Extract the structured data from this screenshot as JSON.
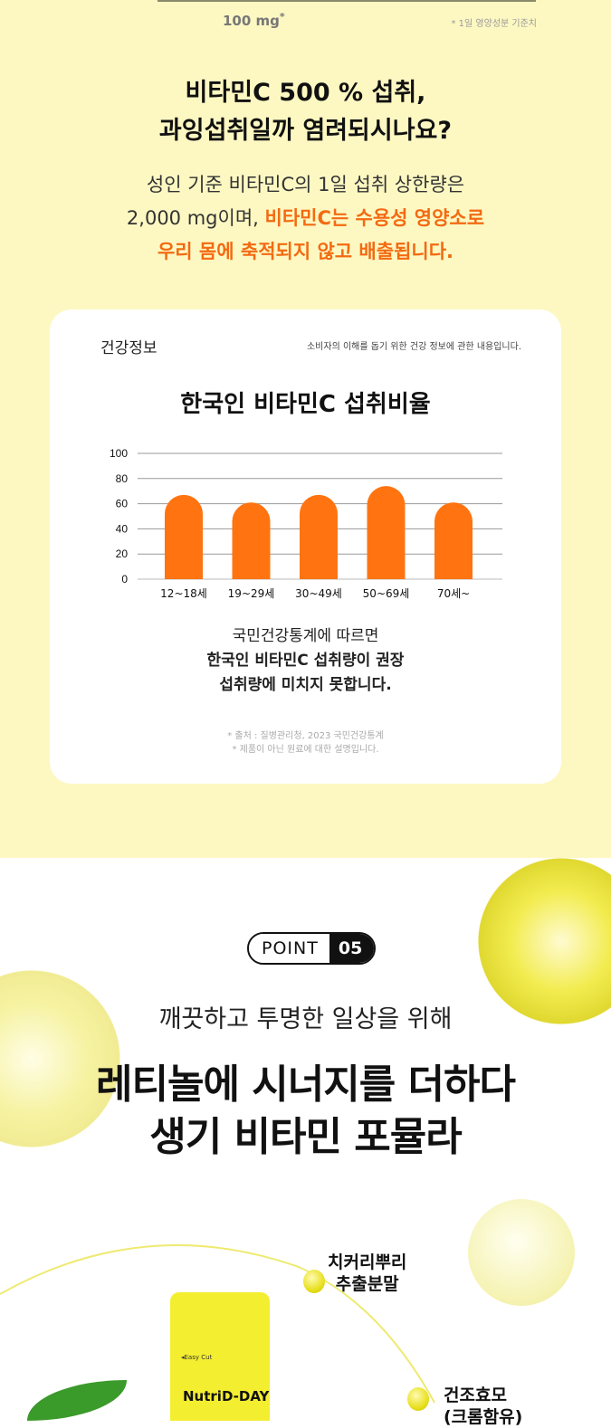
{
  "top": {
    "amount": "100 mg",
    "amount_mark": "*",
    "reference": "* 1일 영양성분 기준치"
  },
  "headline": [
    "비타민C 500 % 섭취,",
    "과잉섭취일까 염려되시나요?"
  ],
  "body": {
    "line1": "성인 기준 비타민C의 1일 섭취 상한량은",
    "line2_plain": "2,000 mg이며, ",
    "line2_highlight": "비타민C는 수용성 영양소로",
    "line3_highlight": "우리 몸에 축적되지 않고 배출됩니다."
  },
  "colors": {
    "accent": "#f36a12",
    "background": "#fdf8c2",
    "bar": "#ff7410"
  },
  "card": {
    "label": "건강정보",
    "note": "소비자의 이해를 돕기 위한 건강 정보에 관한 내용입니다.",
    "desc_line1": "국민건강통계에 따르면",
    "desc_line2": "한국인 비타민C 섭취량이 권장",
    "desc_line3": "섭취량에 미치지 못합니다.",
    "source": "* 출처 : 질병관리청, 2023 국민건강통계",
    "disclaimer": "* 제품이 아닌 원료에 대한 설명입니다."
  },
  "chart_data": {
    "type": "bar",
    "title": "한국인 비타민C 섭취비율",
    "categories": [
      "12~18세",
      "19~29세",
      "30~49세",
      "50~69세",
      "70세~"
    ],
    "values": [
      67,
      61,
      67,
      74,
      61
    ],
    "ylim": [
      0,
      100
    ],
    "yticks": [
      0,
      20,
      40,
      60,
      80,
      100
    ],
    "grid": true,
    "xlabel": "",
    "ylabel": ""
  },
  "point": {
    "label": "POINT",
    "number": "05",
    "subtitle": "깨끗하고 투명한 일상을 위해",
    "title_line1": "레티놀에 시너지를 더하다",
    "title_line2": "생기 비타민 포뮬라"
  },
  "ingredients": [
    {
      "line1": "치커리뿌리",
      "line2": "추출분말"
    },
    {
      "line1": "건조효모",
      "line2": "(크롬함유)"
    }
  ],
  "product": {
    "easy_cut": "◂Easy Cut",
    "brand": "NutriD-DAY"
  }
}
